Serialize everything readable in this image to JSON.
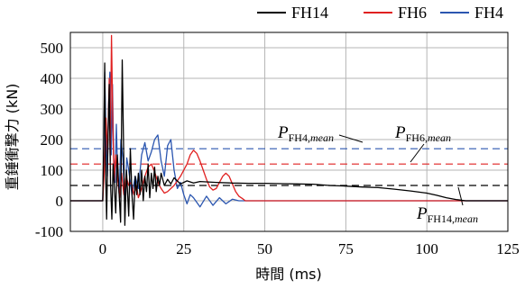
{
  "chart_data": {
    "type": "line",
    "xlabel": "時間 (ms)",
    "ylabel": "重錘衝撃力 (kN)",
    "xlim": [
      -10,
      125
    ],
    "ylim": [
      -100,
      550
    ],
    "xticks": [
      "0",
      "25",
      "50",
      "75",
      "100",
      "125"
    ],
    "yticks": [
      "-100",
      "0",
      "100",
      "200",
      "300",
      "400",
      "500"
    ],
    "grid": true,
    "legend_position": "top",
    "series": [
      {
        "name": "FH14",
        "color": "#000000",
        "points": [
          [
            -10,
            0
          ],
          [
            -1,
            0
          ],
          [
            0,
            0
          ],
          [
            0.3,
            200
          ],
          [
            0.6,
            450
          ],
          [
            0.9,
            80
          ],
          [
            1.2,
            -60
          ],
          [
            1.6,
            200
          ],
          [
            2,
            380
          ],
          [
            2.4,
            60
          ],
          [
            2.8,
            -60
          ],
          [
            3.2,
            120
          ],
          [
            3.6,
            40
          ],
          [
            4,
            -40
          ],
          [
            4.5,
            150
          ],
          [
            5,
            30
          ],
          [
            5.5,
            -70
          ],
          [
            6,
            460
          ],
          [
            6.3,
            250
          ],
          [
            6.8,
            -80
          ],
          [
            7.3,
            100
          ],
          [
            8,
            -50
          ],
          [
            8.5,
            170
          ],
          [
            9,
            20
          ],
          [
            9.5,
            -60
          ],
          [
            10,
            80
          ],
          [
            10.5,
            20
          ],
          [
            11,
            90
          ],
          [
            11.5,
            20
          ],
          [
            12,
            100
          ],
          [
            12.5,
            0
          ],
          [
            13,
            80
          ],
          [
            13.5,
            30
          ],
          [
            14,
            120
          ],
          [
            14.5,
            10
          ],
          [
            15,
            90
          ],
          [
            15.5,
            40
          ],
          [
            16,
            110
          ],
          [
            16.5,
            30
          ],
          [
            17,
            80
          ],
          [
            17.5,
            50
          ],
          [
            18,
            90
          ],
          [
            19,
            50
          ],
          [
            20,
            70
          ],
          [
            21,
            55
          ],
          [
            22,
            75
          ],
          [
            24,
            55
          ],
          [
            26,
            65
          ],
          [
            28,
            58
          ],
          [
            30,
            63
          ],
          [
            35,
            60
          ],
          [
            40,
            58
          ],
          [
            45,
            57
          ],
          [
            50,
            57
          ],
          [
            55,
            56
          ],
          [
            60,
            55
          ],
          [
            65,
            54
          ],
          [
            70,
            50
          ],
          [
            75,
            48
          ],
          [
            80,
            45
          ],
          [
            85,
            43
          ],
          [
            90,
            38
          ],
          [
            95,
            32
          ],
          [
            100,
            25
          ],
          [
            103,
            18
          ],
          [
            106,
            10
          ],
          [
            109,
            4
          ],
          [
            112,
            0
          ],
          [
            125,
            0
          ]
        ]
      },
      {
        "name": "FH6",
        "color": "#e02020",
        "points": [
          [
            -10,
            0
          ],
          [
            -1,
            0
          ],
          [
            0,
            0
          ],
          [
            0.5,
            100
          ],
          [
            1,
            270
          ],
          [
            1.5,
            150
          ],
          [
            2,
            400
          ],
          [
            2.3,
            130
          ],
          [
            2.7,
            540
          ],
          [
            3.1,
            250
          ],
          [
            3.5,
            60
          ],
          [
            4,
            150
          ],
          [
            4.6,
            70
          ],
          [
            5.2,
            10
          ],
          [
            5.8,
            90
          ],
          [
            6.5,
            20
          ],
          [
            7.2,
            80
          ],
          [
            8,
            50
          ],
          [
            8.8,
            60
          ],
          [
            9.6,
            20
          ],
          [
            10.4,
            50
          ],
          [
            11,
            10
          ],
          [
            12,
            40
          ],
          [
            13,
            80
          ],
          [
            14,
            110
          ],
          [
            15,
            120
          ],
          [
            16,
            95
          ],
          [
            17,
            60
          ],
          [
            18,
            40
          ],
          [
            19,
            25
          ],
          [
            20,
            30
          ],
          [
            22,
            50
          ],
          [
            24,
            80
          ],
          [
            26,
            120
          ],
          [
            27,
            150
          ],
          [
            28,
            165
          ],
          [
            29,
            155
          ],
          [
            30,
            130
          ],
          [
            31,
            100
          ],
          [
            32,
            70
          ],
          [
            33,
            45
          ],
          [
            34,
            35
          ],
          [
            35,
            40
          ],
          [
            36,
            60
          ],
          [
            37,
            80
          ],
          [
            38,
            90
          ],
          [
            39,
            80
          ],
          [
            40,
            55
          ],
          [
            41,
            30
          ],
          [
            42,
            15
          ],
          [
            43,
            8
          ],
          [
            44,
            0
          ],
          [
            125,
            0
          ]
        ]
      },
      {
        "name": "FH4",
        "color": "#2b56b0",
        "points": [
          [
            -10,
            0
          ],
          [
            -1,
            0
          ],
          [
            0,
            0
          ],
          [
            0.3,
            150
          ],
          [
            0.6,
            420
          ],
          [
            1,
            200
          ],
          [
            1.4,
            80
          ],
          [
            1.8,
            320
          ],
          [
            2.2,
            420
          ],
          [
            2.6,
            150
          ],
          [
            3,
            380
          ],
          [
            3.4,
            140
          ],
          [
            3.8,
            60
          ],
          [
            4.2,
            250
          ],
          [
            4.6,
            80
          ],
          [
            5.1,
            20
          ],
          [
            5.6,
            200
          ],
          [
            6.2,
            140
          ],
          [
            6.8,
            -10
          ],
          [
            7.4,
            140
          ],
          [
            8,
            100
          ],
          [
            9,
            20
          ],
          [
            10,
            80
          ],
          [
            11,
            40
          ],
          [
            12,
            150
          ],
          [
            13,
            190
          ],
          [
            14,
            130
          ],
          [
            15,
            160
          ],
          [
            16,
            200
          ],
          [
            17,
            215
          ],
          [
            18,
            130
          ],
          [
            19,
            80
          ],
          [
            20,
            180
          ],
          [
            21,
            200
          ],
          [
            22,
            100
          ],
          [
            23,
            40
          ],
          [
            24,
            60
          ],
          [
            25,
            20
          ],
          [
            26,
            -10
          ],
          [
            27,
            20
          ],
          [
            28,
            10
          ],
          [
            30,
            -20
          ],
          [
            32,
            15
          ],
          [
            34,
            -15
          ],
          [
            36,
            10
          ],
          [
            38,
            -10
          ],
          [
            40,
            5
          ],
          [
            42,
            0
          ],
          [
            125,
            0
          ]
        ]
      }
    ],
    "mean_lines": [
      {
        "name": "FH14",
        "value": 50,
        "color": "#000000"
      },
      {
        "name": "FH6",
        "value": 120,
        "color": "#e02020"
      },
      {
        "name": "FH4",
        "value": 170,
        "color": "#2b56b0"
      }
    ],
    "annotations": [
      {
        "main": "P",
        "sub": "FH4,",
        "sub_italic": "mean"
      },
      {
        "main": "P",
        "sub": "FH6,",
        "sub_italic": "mean"
      },
      {
        "main": "P",
        "sub": "FH14,",
        "sub_italic": "mean"
      }
    ]
  }
}
